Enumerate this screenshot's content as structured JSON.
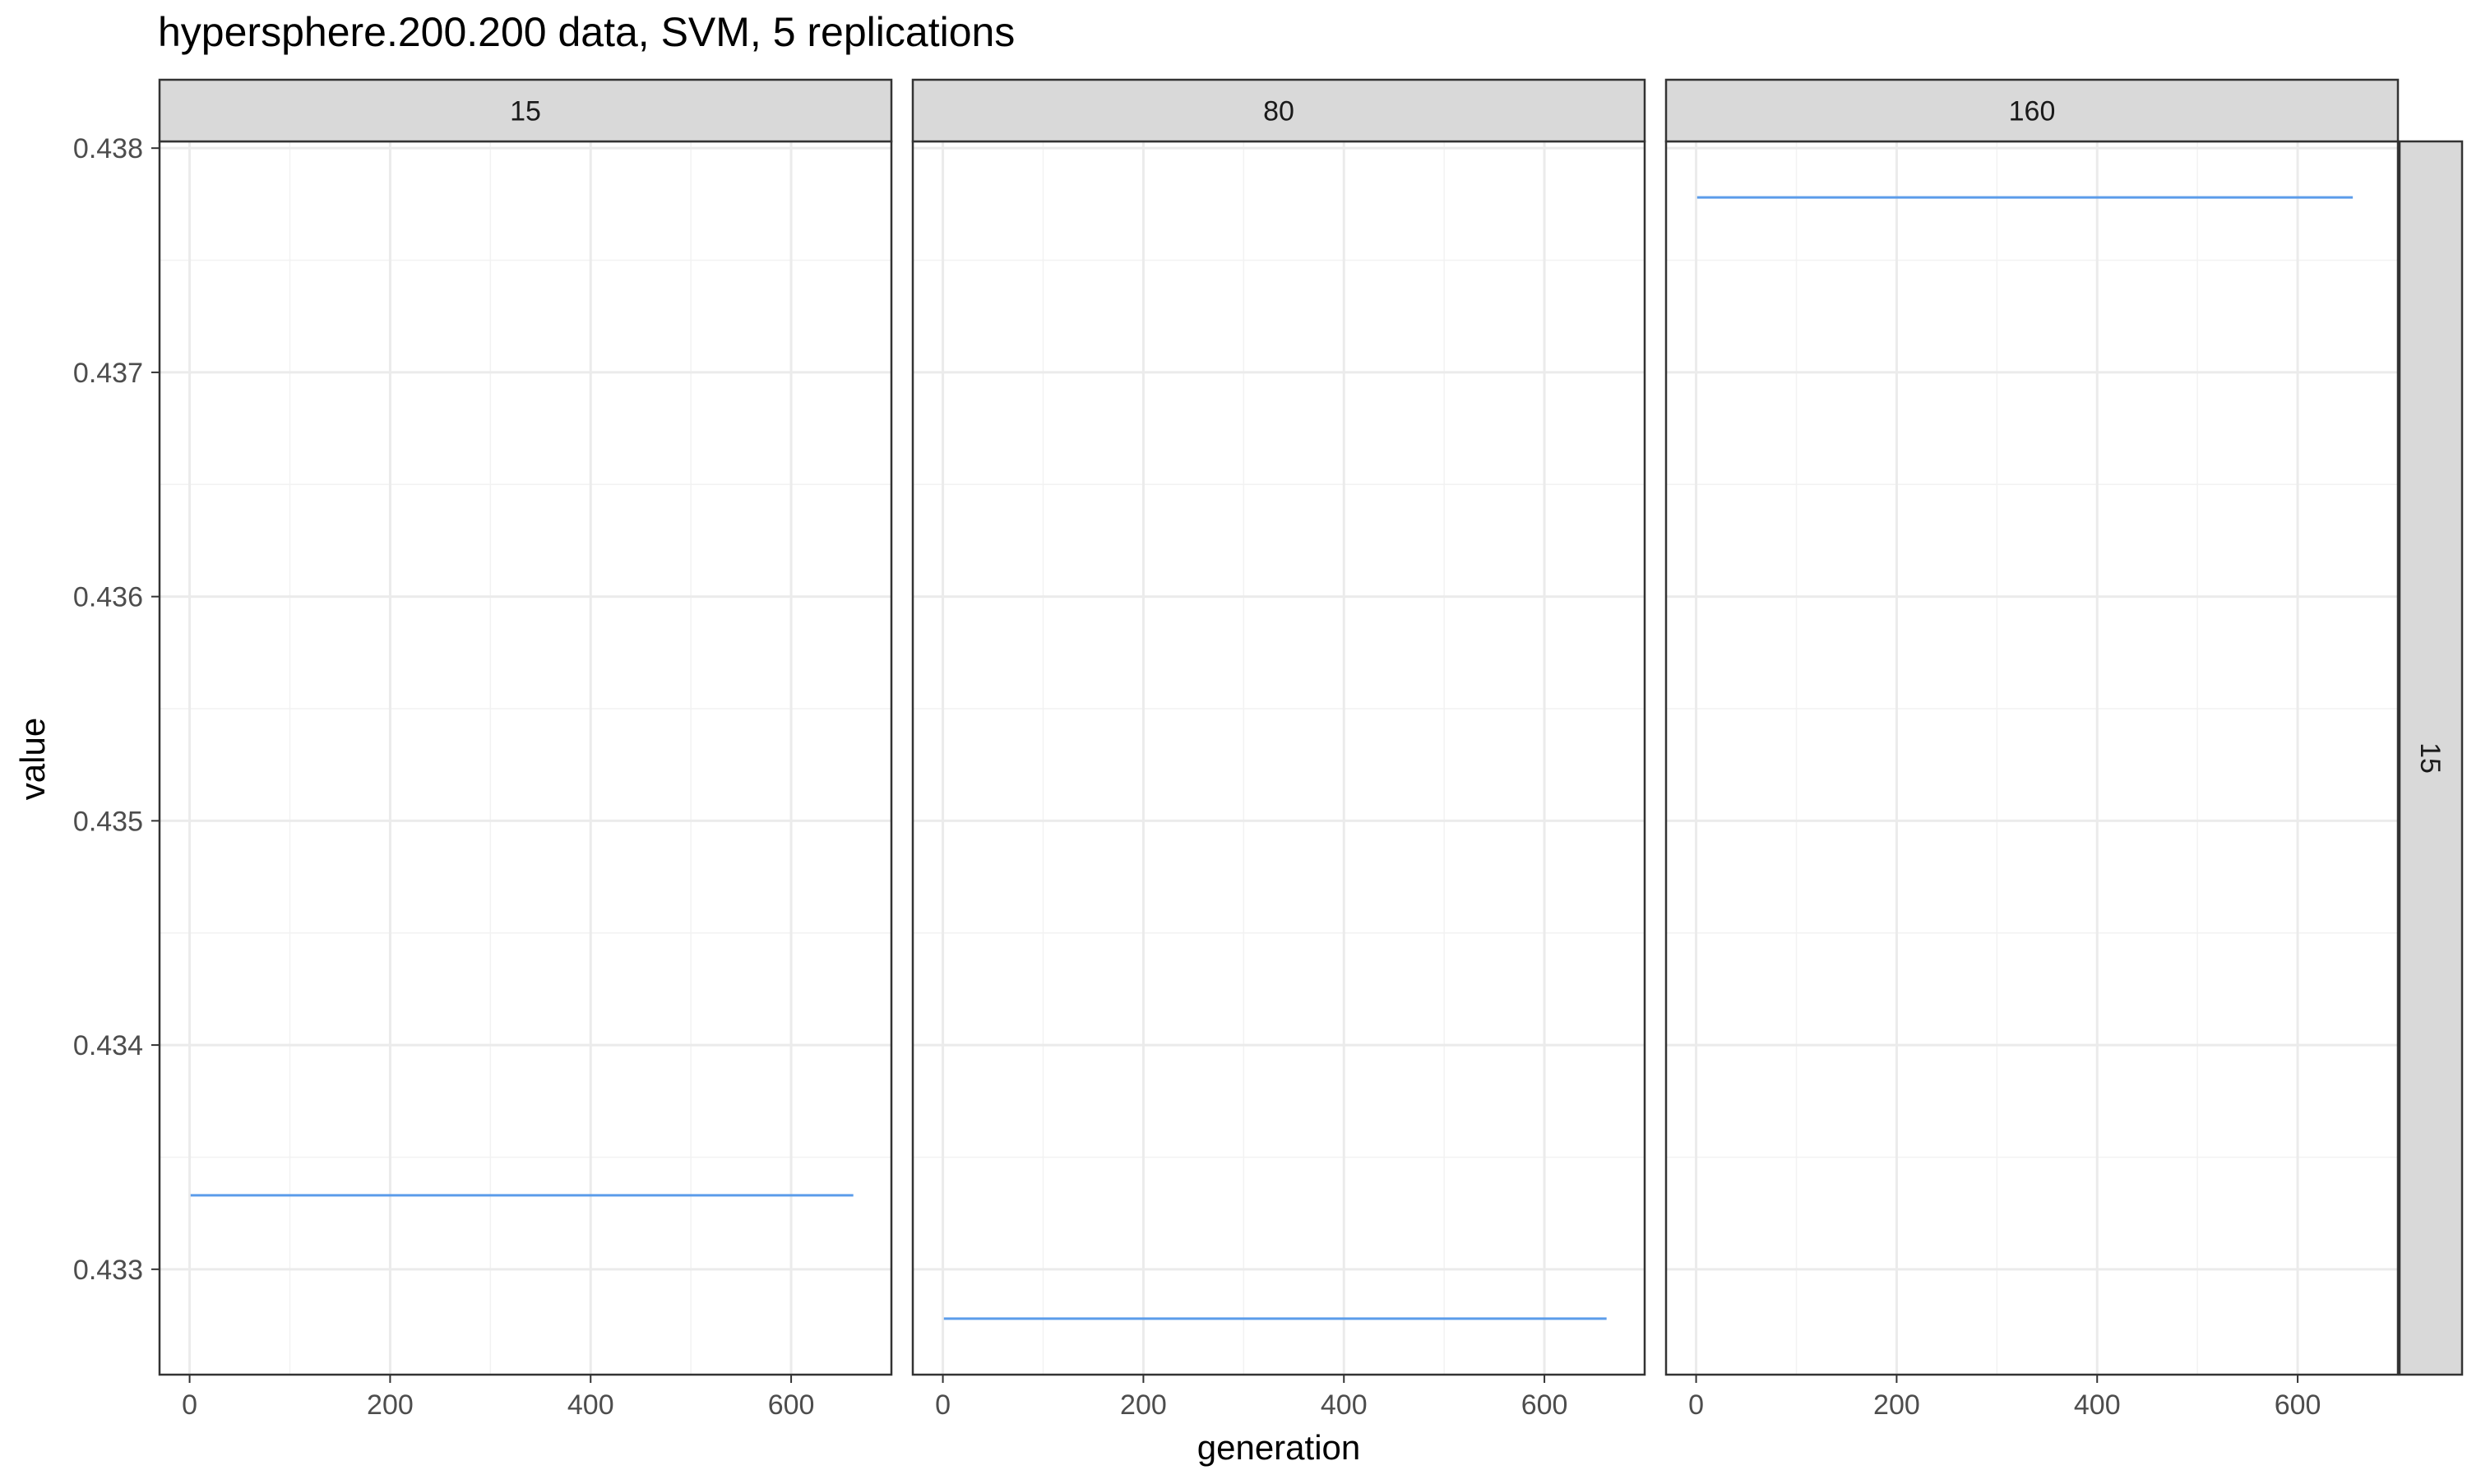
{
  "chart_data": {
    "type": "line",
    "title": "hypersphere.200.200 data, SVM, 5 replications",
    "xlabel": "generation",
    "ylabel": "value",
    "xlim": [
      -30,
      700
    ],
    "ylim": [
      0.43253,
      0.43803
    ],
    "x_ticks": [
      0,
      200,
      400,
      600
    ],
    "x_tick_labels": [
      "0",
      "200",
      "400",
      "600"
    ],
    "y_ticks": [
      0.433,
      0.434,
      0.435,
      0.436,
      0.437,
      0.438
    ],
    "y_tick_labels": [
      "0.433",
      "0.434",
      "0.435",
      "0.436",
      "0.437",
      "0.438"
    ],
    "row_strip_label": "15",
    "grid": true,
    "line_color": "#5b9cea",
    "panels": [
      {
        "strip_label": "15",
        "series": [
          {
            "name": "value",
            "x": [
              1,
              662
            ],
            "y": [
              0.43333,
              0.43333
            ]
          }
        ]
      },
      {
        "strip_label": "80",
        "series": [
          {
            "name": "value",
            "x": [
              1,
              662
            ],
            "y": [
              0.43278,
              0.43278
            ]
          }
        ]
      },
      {
        "strip_label": "160",
        "series": [
          {
            "name": "value",
            "x": [
              1,
              655
            ],
            "y": [
              0.43778,
              0.43778
            ]
          }
        ]
      }
    ]
  }
}
